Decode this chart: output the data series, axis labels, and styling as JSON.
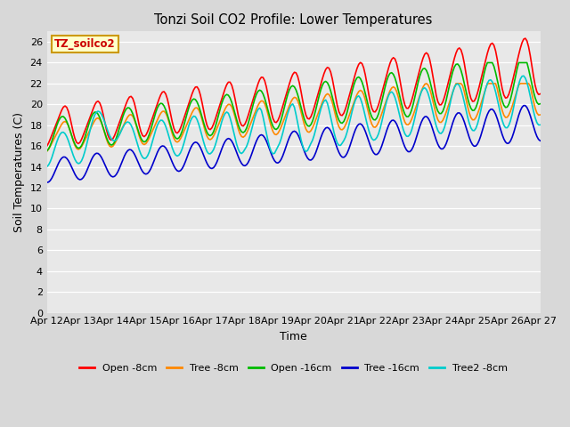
{
  "title": "Tonzi Soil CO2 Profile: Lower Temperatures",
  "xlabel": "Time",
  "ylabel": "Soil Temperatures (C)",
  "ylim": [
    0,
    27
  ],
  "yticks": [
    0,
    2,
    4,
    6,
    8,
    10,
    12,
    14,
    16,
    18,
    20,
    22,
    24,
    26
  ],
  "xtick_labels": [
    "Apr 12",
    "Apr 13",
    "Apr 14",
    "Apr 15",
    "Apr 16",
    "Apr 17",
    "Apr 18",
    "Apr 19",
    "Apr 20",
    "Apr 21",
    "Apr 22",
    "Apr 23",
    "Apr 24",
    "Apr 25",
    "Apr 26",
    "Apr 27"
  ],
  "background_color": "#d8d8d8",
  "plot_bg_color": "#e8e8e8",
  "tag_text": "TZ_soilco2",
  "tag_bg": "#ffffcc",
  "tag_fg": "#cc0000",
  "tag_edge": "#cc9900",
  "legend_labels": [
    "Open -8cm",
    "Tree -8cm",
    "Open -16cm",
    "Tree -16cm",
    "Tree2 -8cm"
  ],
  "line_colors": [
    "#ff0000",
    "#ff8800",
    "#00bb00",
    "#0000cc",
    "#00cccc"
  ],
  "line_width": 1.2,
  "n_days": 15,
  "n_pts": 300
}
